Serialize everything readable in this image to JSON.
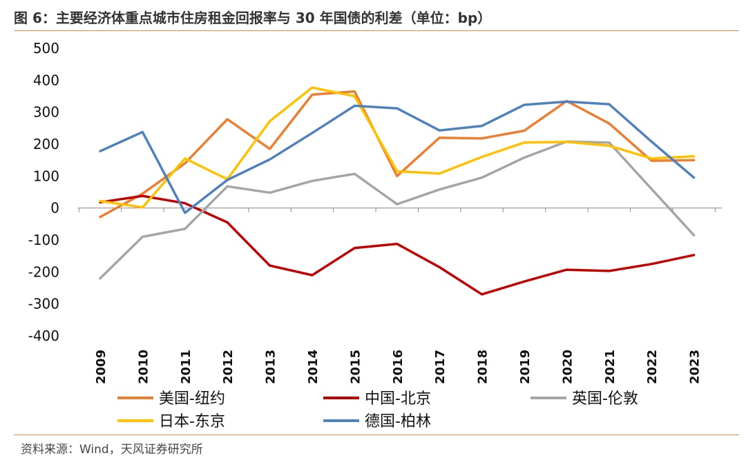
{
  "title": "图 6：主要经济体重点城市住房租金回报率与 30 年国债的利差（单位：bp）",
  "source": "资料来源：Wind，天风证券研究所",
  "chart_data": {
    "type": "line",
    "x": [
      "2009",
      "2010",
      "2011",
      "2012",
      "2013",
      "2014",
      "2015",
      "2016",
      "2017",
      "2018",
      "2019",
      "2020",
      "2021",
      "2022",
      "2023"
    ],
    "ylim": [
      -400,
      500
    ],
    "yticks": [
      500,
      400,
      300,
      200,
      100,
      0,
      -100,
      -200,
      -300,
      -400
    ],
    "grid": false,
    "legend_position": "bottom",
    "series": [
      {
        "name": "美国-纽约",
        "color": "#ed7d31",
        "values": [
          -28,
          45,
          140,
          278,
          185,
          355,
          365,
          100,
          220,
          218,
          242,
          335,
          265,
          148,
          150
        ]
      },
      {
        "name": "中国-北京",
        "color": "#c00000",
        "values": [
          18,
          38,
          15,
          -45,
          -180,
          -210,
          -125,
          -112,
          -185,
          -270,
          -230,
          -193,
          -197,
          -175,
          -147
        ]
      },
      {
        "name": "英国-伦敦",
        "color": "#a5a5a5",
        "values": [
          -220,
          -90,
          -65,
          68,
          48,
          85,
          107,
          12,
          58,
          95,
          158,
          208,
          205,
          60,
          -85
        ]
      },
      {
        "name": "日本-东京",
        "color": "#ffc000",
        "values": [
          22,
          2,
          155,
          90,
          272,
          377,
          350,
          115,
          108,
          160,
          205,
          207,
          195,
          155,
          162
        ]
      },
      {
        "name": "德国-柏林",
        "color": "#4f81bd",
        "values": [
          178,
          238,
          -15,
          88,
          152,
          235,
          320,
          312,
          243,
          257,
          323,
          333,
          325,
          208,
          95
        ]
      }
    ]
  }
}
